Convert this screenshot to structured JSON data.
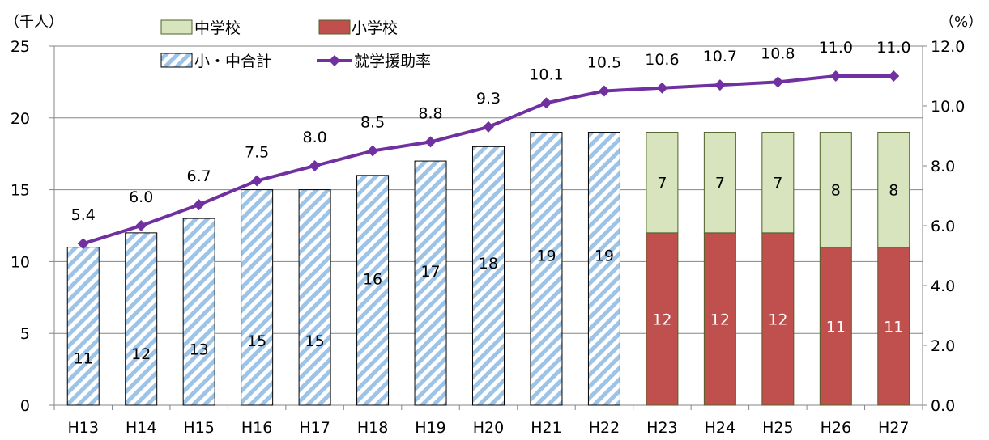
{
  "chart_data": {
    "type": "bar",
    "categories": [
      "H13",
      "H14",
      "H15",
      "H16",
      "H17",
      "H18",
      "H19",
      "H20",
      "H21",
      "H22",
      "H23",
      "H24",
      "H25",
      "H26",
      "H27"
    ],
    "series": [
      {
        "name": "小・中合計",
        "type": "bar",
        "values": [
          11,
          12,
          13,
          15,
          15,
          16,
          17,
          18,
          19,
          19,
          null,
          null,
          null,
          null,
          null
        ],
        "color": "#9dc3e6"
      },
      {
        "name": "小学校",
        "type": "stacked-bar",
        "values": [
          null,
          null,
          null,
          null,
          null,
          null,
          null,
          null,
          null,
          null,
          12,
          12,
          12,
          11,
          11
        ],
        "color": "#c0504d"
      },
      {
        "name": "中学校",
        "type": "stacked-bar",
        "values": [
          null,
          null,
          null,
          null,
          null,
          null,
          null,
          null,
          null,
          null,
          7,
          7,
          7,
          8,
          8
        ],
        "color": "#d7e4bd"
      },
      {
        "name": "就学援助率",
        "type": "line",
        "axis": "right",
        "values": [
          5.4,
          6.0,
          6.7,
          7.5,
          8.0,
          8.5,
          8.8,
          9.3,
          10.1,
          10.5,
          10.6,
          10.7,
          10.8,
          11.0,
          11.0
        ],
        "labels": [
          "5.4",
          "6.0",
          "6.7",
          "7.5",
          "8.0",
          "8.5",
          "8.8",
          "9.3",
          "10.1",
          "10.5",
          "10.6",
          "10.7",
          "10.8",
          "11.0",
          "11.0"
        ],
        "color": "#7030a0"
      }
    ],
    "left_axis": {
      "unit": "（千人）",
      "min": 0,
      "max": 25,
      "ticks": [
        "0",
        "5",
        "10",
        "15",
        "20",
        "25"
      ]
    },
    "right_axis": {
      "unit": "（%）",
      "min": 0,
      "max": 12,
      "ticks": [
        "0.0",
        "2.0",
        "4.0",
        "6.0",
        "8.0",
        "10.0",
        "12.0"
      ]
    },
    "legend": [
      {
        "key": "middle",
        "label": "中学校"
      },
      {
        "key": "elementary",
        "label": "小学校"
      },
      {
        "key": "total",
        "label": "小・中合計"
      },
      {
        "key": "rate",
        "label": "就学援助率"
      }
    ],
    "legend_position": "top",
    "grid": true
  }
}
